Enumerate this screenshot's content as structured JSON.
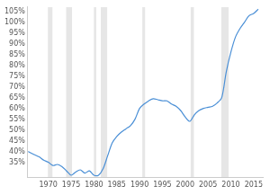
{
  "chart_data": {
    "type": "line",
    "x": [
      1965.6,
      1966,
      1967,
      1968,
      1969,
      1970,
      1971,
      1972,
      1973,
      1974,
      1975,
      1976,
      1977,
      1978,
      1979,
      1980,
      1981,
      1982,
      1983,
      1984,
      1985,
      1986,
      1987,
      1988,
      1989,
      1990,
      1991,
      1992,
      1993,
      1994,
      1995,
      1996,
      1997,
      1998,
      1999,
      2000,
      2001,
      2002,
      2003,
      2004,
      2005,
      2006,
      2007,
      2008,
      2009,
      2010,
      2011,
      2012,
      2013,
      2014,
      2015,
      2016
    ],
    "values": [
      40,
      39.5,
      38.5,
      37.5,
      36,
      35,
      33.5,
      34,
      33,
      31,
      29,
      30.5,
      31.5,
      30,
      31,
      29,
      29,
      32,
      38,
      44,
      47,
      49,
      50.5,
      52,
      55,
      60,
      62,
      63.5,
      64.5,
      64,
      63.5,
      63.5,
      62,
      61,
      59,
      56,
      54,
      57,
      59,
      60,
      60.5,
      61,
      62.5,
      65,
      77,
      86,
      93,
      97,
      100,
      103,
      104,
      106
    ],
    "color": "#4a8fd6",
    "xlim": [
      1965.5,
      2017
    ],
    "xticks": [
      1970,
      1975,
      1980,
      1985,
      1990,
      1995,
      2000,
      2005,
      2010,
      2015
    ],
    "ylim": [
      28,
      107
    ],
    "yticks": [
      {
        "value": 35,
        "label": "35%"
      },
      {
        "value": 40,
        "label": "40%"
      },
      {
        "value": 45,
        "label": "45%"
      },
      {
        "value": 50,
        "label": "50%"
      },
      {
        "value": 55,
        "label": "55%"
      },
      {
        "value": 60,
        "label": "60%"
      },
      {
        "value": 65,
        "label": "65%"
      },
      {
        "value": 70,
        "label": "70%"
      },
      {
        "value": 75,
        "label": "75%"
      },
      {
        "value": 80,
        "label": "80%"
      },
      {
        "value": 85,
        "label": "85%"
      },
      {
        "value": 90,
        "label": "90%"
      },
      {
        "value": 95,
        "label": "95%"
      },
      {
        "value": 100,
        "label": "100%"
      },
      {
        "value": 105,
        "label": "105%"
      }
    ],
    "grid": false,
    "recessions": [
      [
        1969.9,
        1970.9
      ],
      [
        1973.9,
        1975.2
      ],
      [
        1980.0,
        1980.5
      ],
      [
        1981.5,
        1982.9
      ],
      [
        1990.6,
        1991.2
      ],
      [
        2001.2,
        2001.9
      ],
      [
        2007.9,
        2009.5
      ]
    ]
  }
}
